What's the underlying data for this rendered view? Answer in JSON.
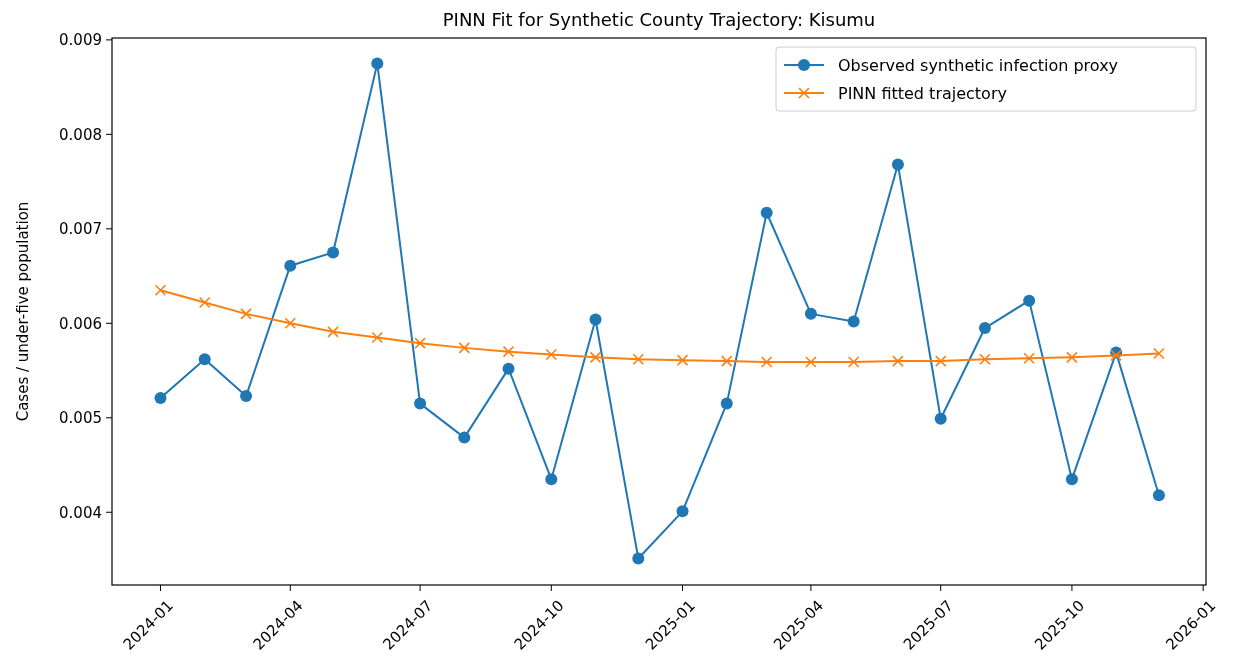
{
  "chart_data": {
    "type": "line",
    "title": "PINN Fit for Synthetic County Trajectory: Kisumu",
    "ylabel": "Cases / under-five population",
    "x": [
      "2024-01",
      "2024-02",
      "2024-03",
      "2024-04",
      "2024-05",
      "2024-06",
      "2024-07",
      "2024-08",
      "2024-09",
      "2024-10",
      "2024-11",
      "2024-12",
      "2025-01",
      "2025-02",
      "2025-03",
      "2025-04",
      "2025-05",
      "2025-06",
      "2025-07",
      "2025-08",
      "2025-09",
      "2025-10",
      "2025-11",
      "2025-12"
    ],
    "series": [
      {
        "name": "Observed synthetic infection proxy",
        "color": "#1f77b4",
        "marker": "circle",
        "values": [
          0.00521,
          0.00562,
          0.00523,
          0.00661,
          0.00675,
          0.00875,
          0.00515,
          0.00479,
          0.00552,
          0.00435,
          0.00604,
          0.00351,
          0.00401,
          0.00515,
          0.00717,
          0.0061,
          0.00602,
          0.00768,
          0.00499,
          0.00595,
          0.00624,
          0.00435,
          0.00569,
          0.00418
        ]
      },
      {
        "name": "PINN fitted trajectory",
        "color": "#ff7f0e",
        "marker": "cross",
        "values": [
          0.00635,
          0.00622,
          0.0061,
          0.006,
          0.00591,
          0.00585,
          0.00579,
          0.00574,
          0.0057,
          0.00567,
          0.00564,
          0.00562,
          0.00561,
          0.0056,
          0.00559,
          0.00559,
          0.00559,
          0.0056,
          0.0056,
          0.00562,
          0.00563,
          0.00564,
          0.00566,
          0.00568
        ]
      }
    ],
    "xlim": [
      "2023-11-28",
      "2026-01-03"
    ],
    "xticks": [
      {
        "value": "2024-01",
        "label": "2024-01"
      },
      {
        "value": "2024-04",
        "label": "2024-04"
      },
      {
        "value": "2024-07",
        "label": "2024-07"
      },
      {
        "value": "2024-10",
        "label": "2024-10"
      },
      {
        "value": "2025-01",
        "label": "2025-01"
      },
      {
        "value": "2025-04",
        "label": "2025-04"
      },
      {
        "value": "2025-07",
        "label": "2025-07"
      },
      {
        "value": "2025-10",
        "label": "2025-10"
      },
      {
        "value": "2026-01",
        "label": "2026-01"
      }
    ],
    "ylim": [
      0.00323,
      0.00902
    ],
    "yticks": [
      0.004,
      0.005,
      0.006,
      0.007,
      0.008,
      0.009
    ],
    "grid": false,
    "legend": "top right",
    "line_style": "solid"
  }
}
